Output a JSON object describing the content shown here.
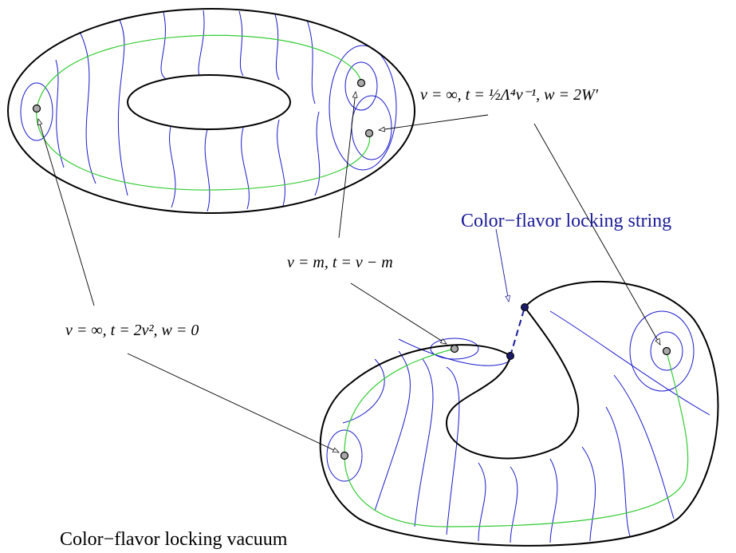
{
  "labels": {
    "top_right": "v = ∞, t = ½Λ⁴v⁻¹, w = 2W′",
    "middle": "v = m, t = v − m",
    "left": "v = ∞, t = 2v², w = 0",
    "string": "Color−flavor locking string",
    "vacuum": "Color−flavor locking vacuum"
  }
}
